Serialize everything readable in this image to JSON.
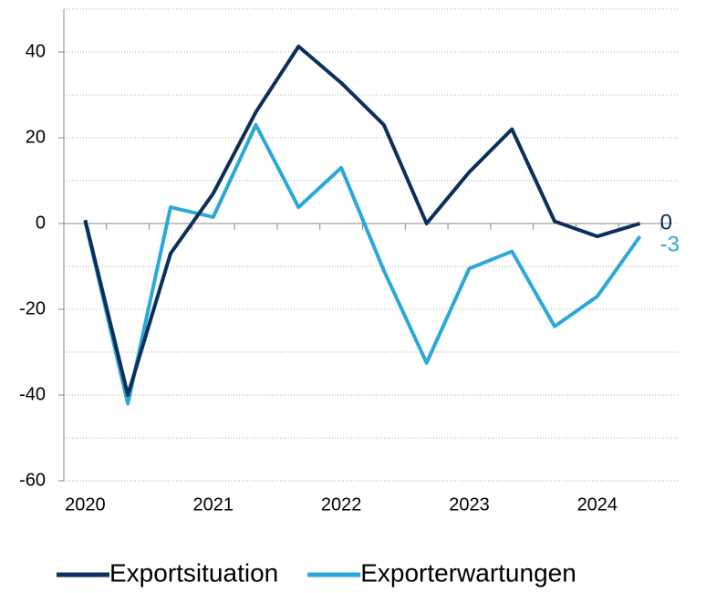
{
  "chart_data": {
    "type": "line",
    "categories": [
      "2020",
      null,
      null,
      "2021",
      null,
      null,
      "2022",
      null,
      null,
      "2023",
      null,
      null,
      "2024",
      null
    ],
    "series": [
      {
        "name": "Exportsituation",
        "color": "#0b2f5b",
        "values": [
          0.8,
          -40,
          -7,
          7,
          26,
          41.3,
          32.8,
          23,
          0,
          12,
          22,
          0.5,
          -3,
          0
        ]
      },
      {
        "name": "Exporterwartungen",
        "color": "#2aa8d8",
        "values": [
          0.5,
          -42,
          3.8,
          1.5,
          23,
          3.8,
          13,
          -11,
          -32.5,
          -10.5,
          -6.5,
          -24,
          -17,
          -3
        ]
      }
    ],
    "ylim": [
      -60,
      50
    ],
    "yticks": [
      -60,
      -40,
      -20,
      0,
      20,
      40
    ],
    "yminor": [
      -50,
      -30,
      -10,
      10,
      30,
      50
    ],
    "grid": true,
    "label_last": true,
    "legend": "bottom"
  }
}
